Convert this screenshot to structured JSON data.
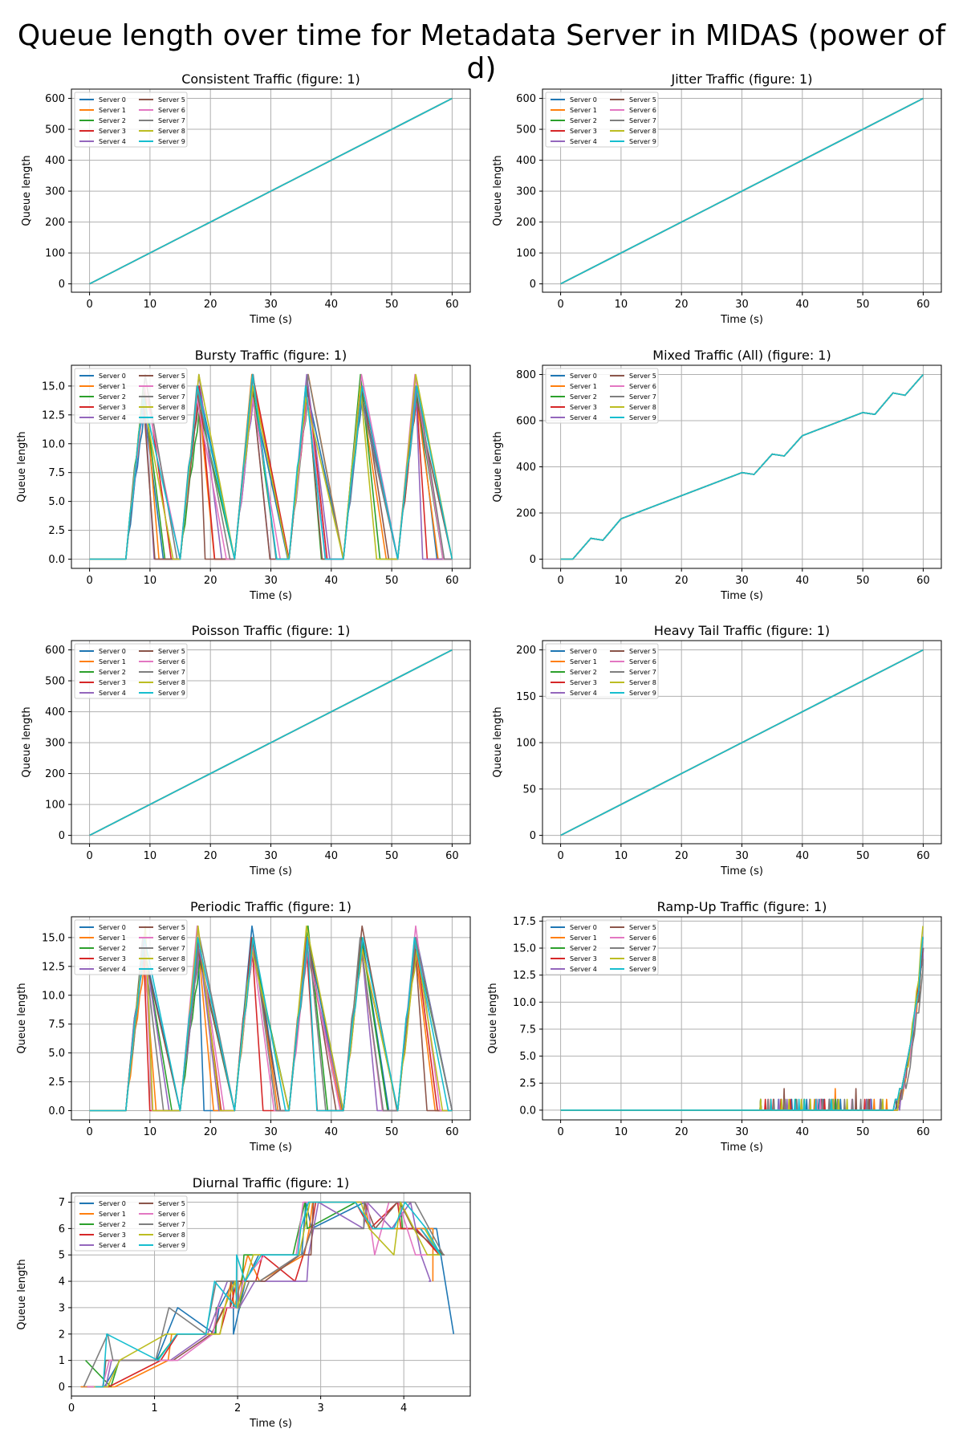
{
  "figure": {
    "title": "Queue length over time for Metadata Server in MIDAS (power of d)"
  },
  "series_colors": [
    "#1f77b4",
    "#ff7f0e",
    "#2ca02c",
    "#d62728",
    "#9467bd",
    "#8c564b",
    "#e377c2",
    "#7f7f7f",
    "#bcbd22",
    "#17becf"
  ],
  "legend_names": [
    "Server 0",
    "Server 1",
    "Server 2",
    "Server 3",
    "Server 4",
    "Server 5",
    "Server 6",
    "Server 7",
    "Server 8",
    "Server 9"
  ],
  "chart_data": [
    {
      "type": "line",
      "title": "Consistent Traffic (figure: 1)",
      "xlabel": "Time (s)",
      "ylabel": "Queue length",
      "xlim": [
        -3,
        63
      ],
      "ylim": [
        -27,
        630
      ],
      "xticks": [
        0,
        10,
        20,
        30,
        40,
        50,
        60
      ],
      "yticks": [
        0,
        100,
        200,
        300,
        400,
        500,
        600
      ],
      "legend": "upper-left",
      "grid": true,
      "pattern": "linear",
      "series": [
        {
          "name": "Server 0–9 (overlapping)",
          "x": [
            0,
            60
          ],
          "y": [
            0,
            600
          ]
        }
      ]
    },
    {
      "type": "line",
      "title": "Jitter Traffic (figure: 1)",
      "xlabel": "Time (s)",
      "ylabel": "Queue length",
      "xlim": [
        -3,
        63
      ],
      "ylim": [
        -27,
        630
      ],
      "xticks": [
        0,
        10,
        20,
        30,
        40,
        50,
        60
      ],
      "yticks": [
        0,
        100,
        200,
        300,
        400,
        500,
        600
      ],
      "legend": "upper-left",
      "grid": true,
      "pattern": "linear",
      "series": [
        {
          "name": "Server 0–9 (overlapping)",
          "x": [
            0,
            60
          ],
          "y": [
            0,
            600
          ]
        }
      ]
    },
    {
      "type": "line",
      "title": "Bursty Traffic (figure: 1)",
      "xlabel": "Time (s)",
      "ylabel": "Queue length",
      "xlim": [
        -3,
        63
      ],
      "ylim": [
        -0.8,
        16.8
      ],
      "xticks": [
        0,
        10,
        20,
        30,
        40,
        50,
        60
      ],
      "yticks": [
        0,
        2.5,
        5,
        7.5,
        10,
        12.5,
        15
      ],
      "ytick_labels": [
        "0.0",
        "2.5",
        "5.0",
        "7.5",
        "10.0",
        "12.5",
        "15.0"
      ],
      "legend": "upper-left",
      "grid": true,
      "pattern": "bursts",
      "burst_starts": [
        6,
        15,
        24,
        33,
        42,
        51
      ],
      "burst_peak_offset": 3,
      "peaks": [
        [
          13,
          15,
          15,
          16,
          14,
          14,
          15,
          16,
          14,
          14
        ],
        [
          15,
          14,
          13,
          15,
          16,
          14,
          14,
          15,
          16,
          15
        ],
        [
          14,
          16,
          15,
          16,
          14,
          15,
          14,
          16,
          15,
          16
        ],
        [
          15,
          16,
          14,
          15,
          16,
          15,
          14,
          16,
          14,
          15
        ],
        [
          14,
          15,
          16,
          15,
          14,
          15,
          16,
          14,
          15,
          15
        ],
        [
          15,
          14,
          15,
          14,
          15,
          14,
          16,
          15,
          16,
          15
        ]
      ]
    },
    {
      "type": "line",
      "title": "Mixed Traffic (All) (figure: 1)",
      "xlabel": "Time (s)",
      "ylabel": "Queue length",
      "xlim": [
        -3,
        63
      ],
      "ylim": [
        -40,
        840
      ],
      "xticks": [
        0,
        10,
        20,
        30,
        40,
        50,
        60
      ],
      "yticks": [
        0,
        200,
        400,
        600,
        800
      ],
      "legend": "upper-left",
      "grid": true,
      "pattern": "polyline",
      "series": [
        {
          "name": "Server 0–9 (overlapping)",
          "x": [
            0,
            2,
            5,
            7,
            10,
            30,
            32,
            35,
            37,
            40,
            50,
            52,
            55,
            57,
            60
          ],
          "y": [
            0,
            0,
            90,
            82,
            175,
            375,
            367,
            455,
            447,
            535,
            635,
            627,
            720,
            710,
            800
          ]
        }
      ]
    },
    {
      "type": "line",
      "title": "Poisson Traffic (figure: 1)",
      "xlabel": "Time (s)",
      "ylabel": "Queue length",
      "xlim": [
        -3,
        63
      ],
      "ylim": [
        -27,
        630
      ],
      "xticks": [
        0,
        10,
        20,
        30,
        40,
        50,
        60
      ],
      "yticks": [
        0,
        100,
        200,
        300,
        400,
        500,
        600
      ],
      "legend": "upper-left",
      "grid": true,
      "pattern": "linear",
      "series": [
        {
          "name": "Server 0–9 (overlapping)",
          "x": [
            0,
            60
          ],
          "y": [
            0,
            600
          ]
        }
      ]
    },
    {
      "type": "line",
      "title": "Heavy Tail Traffic (figure: 1)",
      "xlabel": "Time (s)",
      "ylabel": "Queue length",
      "xlim": [
        -3,
        63
      ],
      "ylim": [
        -9,
        210
      ],
      "xticks": [
        0,
        10,
        20,
        30,
        40,
        50,
        60
      ],
      "yticks": [
        0,
        50,
        100,
        150,
        200
      ],
      "legend": "upper-left",
      "grid": true,
      "pattern": "linear",
      "series": [
        {
          "name": "Server 0–9 (overlapping)",
          "x": [
            0,
            60
          ],
          "y": [
            0,
            200
          ]
        }
      ]
    },
    {
      "type": "line",
      "title": "Periodic Traffic (figure: 1)",
      "xlabel": "Time (s)",
      "ylabel": "Queue length",
      "xlim": [
        -3,
        63
      ],
      "ylim": [
        -0.8,
        16.8
      ],
      "xticks": [
        0,
        10,
        20,
        30,
        40,
        50,
        60
      ],
      "yticks": [
        0,
        2.5,
        5,
        7.5,
        10,
        12.5,
        15
      ],
      "ytick_labels": [
        "0.0",
        "2.5",
        "5.0",
        "7.5",
        "10.0",
        "12.5",
        "15.0"
      ],
      "legend": "upper-left",
      "grid": true,
      "pattern": "bursts",
      "burst_starts": [
        6,
        15,
        24,
        33,
        42,
        51
      ],
      "burst_peak_offset": 3,
      "peaks": [
        [
          14,
          13,
          15,
          14,
          15,
          14,
          15,
          14,
          16,
          15
        ],
        [
          15,
          14,
          13,
          15,
          14,
          14,
          16,
          15,
          16,
          15
        ],
        [
          16,
          15,
          14,
          15,
          14,
          15,
          14,
          15,
          14,
          15
        ],
        [
          15,
          14,
          16,
          15,
          14,
          15,
          14,
          15,
          16,
          15
        ],
        [
          15,
          14,
          15,
          14,
          15,
          16,
          14,
          15,
          14,
          15
        ],
        [
          15,
          14,
          15,
          14,
          15,
          14,
          16,
          15,
          14,
          15
        ]
      ]
    },
    {
      "type": "line",
      "title": "Ramp-Up Traffic (figure: 1)",
      "xlabel": "Time (s)",
      "ylabel": "Queue length",
      "xlim": [
        -3,
        63
      ],
      "ylim": [
        -0.9,
        17.9
      ],
      "xticks": [
        0,
        10,
        20,
        30,
        40,
        50,
        60
      ],
      "yticks": [
        0,
        2.5,
        5,
        7.5,
        10,
        12.5,
        15,
        17.5
      ],
      "ytick_labels": [
        "0.0",
        "2.5",
        "5.0",
        "7.5",
        "10.0",
        "12.5",
        "15.0",
        "17.5"
      ],
      "legend": "upper-left",
      "grid": true,
      "pattern": "ramp",
      "final_values": [
        15,
        16,
        15,
        16,
        15,
        15,
        16,
        14,
        17,
        16
      ]
    },
    {
      "type": "line",
      "title": "Diurnal Traffic (figure: 1)",
      "xlabel": "Time (s)",
      "ylabel": "Queue length",
      "xlim": [
        0,
        4.8
      ],
      "ylim": [
        -0.35,
        7.35
      ],
      "xticks": [
        0,
        1,
        2,
        3,
        4
      ],
      "yticks": [
        0,
        1,
        2,
        3,
        4,
        5,
        6,
        7
      ],
      "legend": "upper-left",
      "grid": true,
      "pattern": "steps",
      "steps": [
        [
          0.2,
          0
        ],
        [
          0.45,
          0
        ],
        [
          0.5,
          1
        ],
        [
          1.1,
          1
        ],
        [
          1.2,
          2
        ],
        [
          1.7,
          2
        ],
        [
          1.8,
          3
        ],
        [
          1.95,
          3
        ],
        [
          2.0,
          4
        ],
        [
          2.15,
          4
        ],
        [
          2.25,
          5
        ],
        [
          2.75,
          5
        ],
        [
          2.85,
          6
        ],
        [
          2.9,
          7
        ],
        [
          3.5,
          7
        ],
        [
          3.6,
          6
        ],
        [
          3.9,
          6
        ],
        [
          4.0,
          7
        ],
        [
          4.2,
          6
        ],
        [
          4.4,
          5
        ]
      ],
      "end_points": [
        [
          4.6,
          2
        ],
        [
          4.35,
          4
        ],
        [
          4.3,
          5
        ],
        [
          4.2,
          6
        ],
        [
          4.3,
          4
        ],
        [
          4.4,
          5
        ],
        [
          4.2,
          6
        ],
        [
          4.35,
          5
        ],
        [
          4.25,
          6
        ],
        [
          4.2,
          6
        ]
      ]
    }
  ]
}
